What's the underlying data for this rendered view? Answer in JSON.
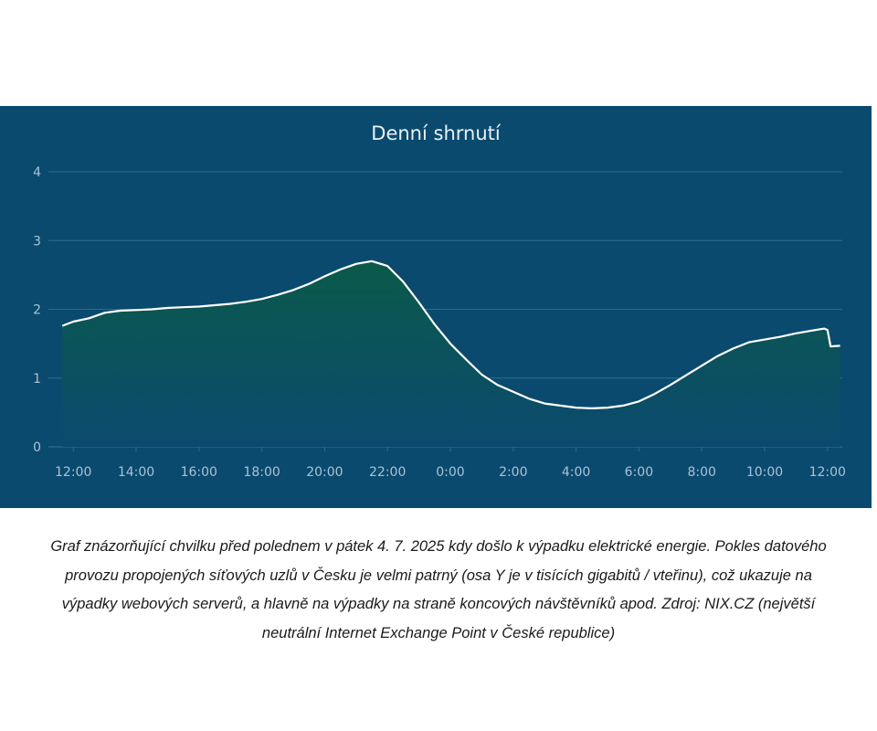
{
  "chart_data": {
    "type": "area",
    "title": "Denní shrnutí",
    "xlabel": "",
    "ylabel": "",
    "ylim": [
      0,
      4
    ],
    "yticks": [
      0,
      1,
      2,
      3,
      4
    ],
    "xticks": [
      "12:00",
      "14:00",
      "16:00",
      "18:00",
      "20:00",
      "22:00",
      "0:00",
      "2:00",
      "4:00",
      "6:00",
      "8:00",
      "10:00",
      "12:00"
    ],
    "xlim_hours": [
      11.65,
      36.4
    ],
    "grid": true,
    "legend": "none",
    "series": [
      {
        "x": [
          11.65,
          12.0,
          12.5,
          13.0,
          13.5,
          14.0,
          14.5,
          15.0,
          15.5,
          16.0,
          16.5,
          17.0,
          17.5,
          18.0,
          18.5,
          19.0,
          19.5,
          20.0,
          20.5,
          21.0,
          21.5,
          22.0,
          22.5,
          23.0,
          23.5,
          24.0,
          24.5,
          25.0,
          25.5,
          26.0,
          26.5,
          27.0,
          27.5,
          28.0,
          28.5,
          29.0,
          29.5,
          30.0,
          30.5,
          31.0,
          31.5,
          32.0,
          32.5,
          33.0,
          33.5,
          34.0,
          34.5,
          35.0,
          35.5,
          35.9,
          36.0,
          36.1,
          36.4
        ],
        "y": [
          1.76,
          1.82,
          1.87,
          1.95,
          1.98,
          1.99,
          2.0,
          2.02,
          2.03,
          2.04,
          2.06,
          2.08,
          2.11,
          2.15,
          2.21,
          2.28,
          2.37,
          2.48,
          2.58,
          2.66,
          2.7,
          2.63,
          2.4,
          2.1,
          1.78,
          1.5,
          1.27,
          1.05,
          0.9,
          0.8,
          0.7,
          0.63,
          0.6,
          0.57,
          0.56,
          0.57,
          0.6,
          0.66,
          0.77,
          0.9,
          1.04,
          1.18,
          1.32,
          1.43,
          1.52,
          1.56,
          1.6,
          1.65,
          1.69,
          1.72,
          1.7,
          1.46,
          1.47
        ]
      }
    ],
    "colors": {
      "background": "#0b4a6f",
      "line": "#ffffff",
      "fill_top": "#0b5a4a",
      "fill_bottom": "#0b4a6f",
      "grid": "#2f6a8c",
      "tick_text": "#a9c3d4"
    }
  },
  "caption": {
    "lines": [
      "Graf znázorňující chvilku před polednem v pátek 4. 7. 2025 kdy došlo k výpadku elektrické energie. Pokles datového",
      "provozu propojených síťových uzlů v Česku je velmi patrný (osa Y je v tisících gigabitů / vteřinu), což ukazuje na",
      "výpadky webových serverů, a hlavně na výpadky na straně koncových návštěvníků apod. Zdroj: NIX.CZ (největší",
      "neutrální Internet Exchange Point v České republice)"
    ]
  }
}
